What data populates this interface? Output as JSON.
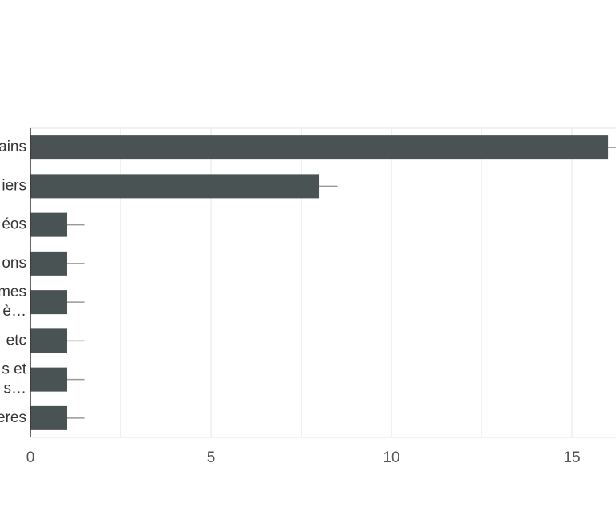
{
  "chart_data": {
    "type": "hbar",
    "categories": [
      [
        "ains"
      ],
      [
        "iers"
      ],
      [
        "éos"
      ],
      [
        "ons"
      ],
      [
        "mes",
        "è…"
      ],
      [
        "etc"
      ],
      [
        "s et",
        "s…"
      ],
      [
        "eres"
      ]
    ],
    "values": [
      16,
      8,
      1,
      1,
      1,
      1,
      1,
      1
    ],
    "errors": [
      0.5,
      0.5,
      0.5,
      0.5,
      0.5,
      0.5,
      0.5,
      0.5
    ],
    "color": "#4a5354",
    "xlim": [
      0,
      16.22
    ],
    "xticks": [
      0,
      5,
      10,
      15
    ],
    "minor_xticks": [
      2.5,
      7.5,
      12.5
    ],
    "grid": true
  }
}
